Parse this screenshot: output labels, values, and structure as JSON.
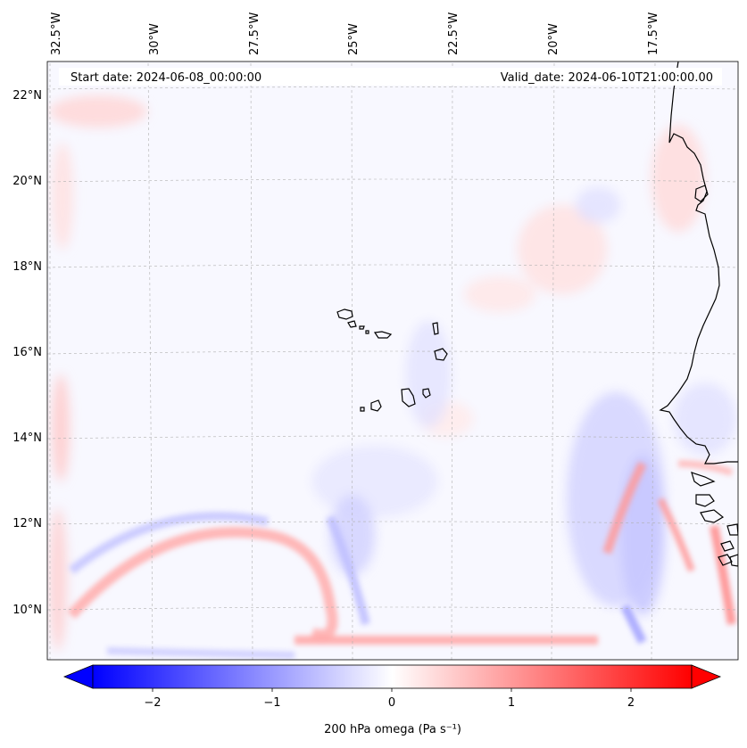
{
  "map": {
    "start_date_label": "Start date: 2024-06-08_00:00:00",
    "valid_date_label": "Valid_date: 2024-06-10T21:00:00.00",
    "lon_labels": [
      "32.5°W",
      "30°W",
      "27.5°W",
      "25°W",
      "22.5°W",
      "20°W",
      "17.5°W"
    ],
    "lat_labels": [
      "22°N",
      "20°N",
      "18°N",
      "16°N",
      "14°N",
      "12°N",
      "10°N"
    ],
    "colors": {
      "negative": "#0000ff",
      "positive": "#ff0000",
      "neutral": "#ffffff",
      "coastline": "#000000",
      "gridline": "#b0b0b0"
    }
  },
  "colorbar": {
    "tick_labels": [
      "−2",
      "−1",
      "0",
      "1",
      "2"
    ],
    "title": "200 hPa omega (Pa s⁻¹)",
    "range": [
      -2.6,
      2.6
    ]
  }
}
